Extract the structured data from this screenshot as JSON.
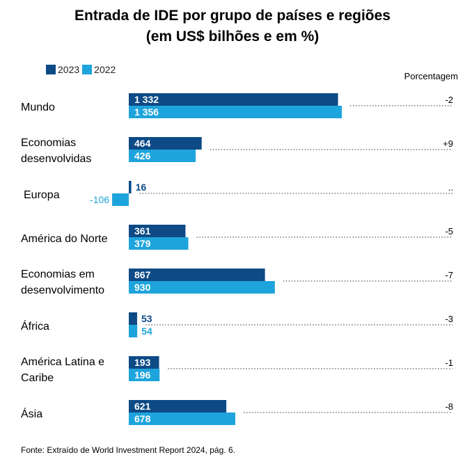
{
  "title": {
    "line1": "Entrada de IDE por grupo de países e regiões",
    "line2": "(em US$ bilhões e em %)"
  },
  "percent_header": "Porcentagem",
  "source": "Fonte: Extraído de World Investment Report 2024, pág. 6.",
  "colors": {
    "y2023": "#0d4a86",
    "y2022": "#1ea4dc"
  },
  "chart_data": {
    "type": "bar",
    "orientation": "horizontal",
    "series": [
      {
        "name": "2023",
        "values": [
          1332,
          464,
          16,
          361,
          867,
          53,
          193,
          621
        ]
      },
      {
        "name": "2022",
        "values": [
          1356,
          426,
          -106,
          379,
          930,
          54,
          196,
          678
        ]
      }
    ],
    "value_labels": {
      "2023": [
        "1 332",
        "464",
        "16",
        "361",
        "867",
        "53",
        "193",
        "621"
      ],
      "2022": [
        "1 356",
        "426",
        "-106",
        "379",
        "930",
        "54",
        "196",
        "678"
      ]
    },
    "categories": [
      [
        "Mundo"
      ],
      [
        "Economias",
        "desenvolvidas"
      ],
      [
        "Europa"
      ],
      [
        "América do Norte"
      ],
      [
        "Economias em",
        "desenvolvimento"
      ],
      [
        "África"
      ],
      [
        "América Latina e",
        "Caribe"
      ],
      [
        "Ásia"
      ]
    ],
    "percent_change": [
      "-2",
      "+9",
      "..",
      "-5",
      "-7",
      "-3",
      "-1",
      "-8"
    ],
    "xlim": [
      -106,
      1356
    ],
    "grid": false,
    "legend": "top-left"
  }
}
